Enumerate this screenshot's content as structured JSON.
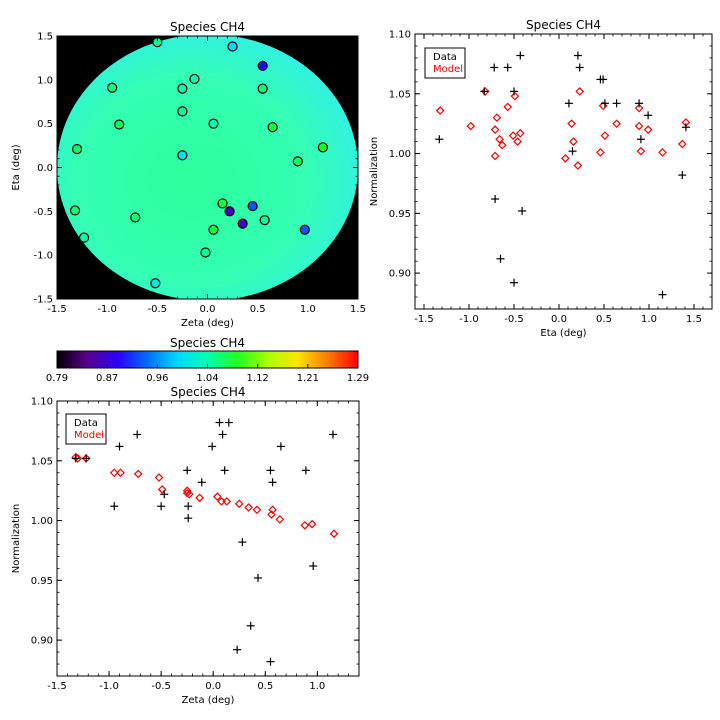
{
  "chart_data": [
    {
      "type": "scatter",
      "title": "Species CH4",
      "xlabel": "Zeta (deg)",
      "ylabel": "Eta (deg)",
      "xlim": [
        -1.5,
        1.5
      ],
      "ylim": [
        -1.5,
        1.5
      ],
      "xticks": [
        "-1.5",
        "-1.0",
        "-0.5",
        "0.0",
        "0.5",
        "1.0",
        "1.5"
      ],
      "yticks": [
        "-1.5",
        "-1.0",
        "-0.5",
        "0.0",
        "0.5",
        "1.0",
        "1.5"
      ],
      "background": "#000000",
      "field_color": "#33ffaa",
      "points": [
        {
          "x": -0.5,
          "y": 1.43,
          "v": 1.05
        },
        {
          "x": 0.25,
          "y": 1.38,
          "v": 0.99
        },
        {
          "x": 0.55,
          "y": 1.16,
          "v": 0.89
        },
        {
          "x": -0.95,
          "y": 0.91,
          "v": 1.06
        },
        {
          "x": -0.13,
          "y": 1.01,
          "v": 1.04
        },
        {
          "x": -0.25,
          "y": 0.9,
          "v": 1.04
        },
        {
          "x": 0.55,
          "y": 0.9,
          "v": 1.06
        },
        {
          "x": -0.88,
          "y": 0.49,
          "v": 1.07
        },
        {
          "x": -0.25,
          "y": 0.64,
          "v": 1.05
        },
        {
          "x": 0.06,
          "y": 0.5,
          "v": 1.04
        },
        {
          "x": 0.65,
          "y": 0.46,
          "v": 1.08
        },
        {
          "x": 1.15,
          "y": 0.23,
          "v": 1.09
        },
        {
          "x": -1.3,
          "y": 0.21,
          "v": 1.07
        },
        {
          "x": -0.25,
          "y": 0.14,
          "v": 1.0
        },
        {
          "x": 0.9,
          "y": 0.07,
          "v": 1.07
        },
        {
          "x": -1.32,
          "y": -0.49,
          "v": 1.06
        },
        {
          "x": 0.15,
          "y": -0.41,
          "v": 1.08
        },
        {
          "x": 0.45,
          "y": -0.44,
          "v": 0.93
        },
        {
          "x": 0.22,
          "y": -0.5,
          "v": 0.86
        },
        {
          "x": -0.72,
          "y": -0.57,
          "v": 1.06
        },
        {
          "x": 0.35,
          "y": -0.64,
          "v": 0.86
        },
        {
          "x": 0.57,
          "y": -0.6,
          "v": 1.05
        },
        {
          "x": 0.97,
          "y": -0.71,
          "v": 0.93
        },
        {
          "x": 0.06,
          "y": -0.71,
          "v": 1.08
        },
        {
          "x": -1.23,
          "y": -0.8,
          "v": 1.04
        },
        {
          "x": -0.02,
          "y": -0.97,
          "v": 1.05
        },
        {
          "x": -0.52,
          "y": -1.32,
          "v": 1.01
        }
      ]
    },
    {
      "type": "colorbar",
      "title": "Species CH4",
      "range": [
        0.79,
        1.29
      ],
      "ticks": [
        "0.79",
        "0.87",
        "0.96",
        "1.04",
        "1.12",
        "1.21",
        "1.29"
      ]
    },
    {
      "type": "scatter",
      "title": "Species CH4",
      "xlabel": "Eta (deg)",
      "ylabel": "Normalization",
      "xlim": [
        -1.6,
        1.7
      ],
      "ylim": [
        0.87,
        1.1
      ],
      "xticks": [
        "-1.5",
        "-1.0",
        "-0.5",
        "0.0",
        "0.5",
        "1.0",
        "1.5"
      ],
      "yticks": [
        "0.90",
        "0.95",
        "1.00",
        "1.05",
        "1.10"
      ],
      "legend": [
        "Data",
        "Model"
      ],
      "legend_position": "top-left",
      "series": [
        {
          "name": "Data",
          "color": "#000000",
          "marker": "plus",
          "points": [
            [
              -1.33,
              1.012
            ],
            [
              -0.83,
              1.052
            ],
            [
              -0.72,
              1.072
            ],
            [
              -0.57,
              1.072
            ],
            [
              -0.5,
              1.052
            ],
            [
              -0.43,
              1.082
            ],
            [
              -0.71,
              0.962
            ],
            [
              -0.65,
              0.912
            ],
            [
              -0.5,
              0.892
            ],
            [
              -0.41,
              0.952
            ],
            [
              0.11,
              1.042
            ],
            [
              0.15,
              1.002
            ],
            [
              0.21,
              1.082
            ],
            [
              0.23,
              1.072
            ],
            [
              0.46,
              1.062
            ],
            [
              0.49,
              1.062
            ],
            [
              0.51,
              1.042
            ],
            [
              0.64,
              1.042
            ],
            [
              0.89,
              1.042
            ],
            [
              0.91,
              1.012
            ],
            [
              0.99,
              1.032
            ],
            [
              1.15,
              0.882
            ],
            [
              1.37,
              0.982
            ],
            [
              1.41,
              1.022
            ]
          ]
        },
        {
          "name": "Model",
          "color": "#ff0000",
          "marker": "diamond",
          "points": [
            [
              -1.32,
              1.036
            ],
            [
              -0.98,
              1.023
            ],
            [
              -0.82,
              1.052
            ],
            [
              -0.71,
              1.02
            ],
            [
              -0.71,
              0.998
            ],
            [
              -0.69,
              1.03
            ],
            [
              -0.66,
              1.012
            ],
            [
              -0.63,
              1.007
            ],
            [
              -0.57,
              1.039
            ],
            [
              -0.51,
              1.015
            ],
            [
              -0.49,
              1.048
            ],
            [
              -0.46,
              1.01
            ],
            [
              -0.43,
              1.017
            ],
            [
              0.07,
              0.996
            ],
            [
              0.14,
              1.025
            ],
            [
              0.16,
              1.01
            ],
            [
              0.21,
              0.99
            ],
            [
              0.23,
              1.052
            ],
            [
              0.46,
              1.001
            ],
            [
              0.49,
              1.04
            ],
            [
              0.51,
              1.015
            ],
            [
              0.64,
              1.025
            ],
            [
              0.89,
              1.038
            ],
            [
              0.89,
              1.023
            ],
            [
              0.91,
              1.002
            ],
            [
              0.99,
              1.02
            ],
            [
              1.15,
              1.001
            ],
            [
              1.37,
              1.008
            ],
            [
              1.41,
              1.026
            ]
          ]
        }
      ]
    },
    {
      "type": "scatter",
      "title": "Species CH4",
      "xlabel": "Zeta (deg)",
      "ylabel": "Normalization",
      "xlim": [
        -1.5,
        1.4
      ],
      "ylim": [
        0.87,
        1.1
      ],
      "xticks": [
        "-1.5",
        "-1.0",
        "-0.5",
        "0.0",
        "0.5",
        "1.0"
      ],
      "yticks": [
        "0.90",
        "0.95",
        "1.00",
        "1.05",
        "1.10"
      ],
      "legend": [
        "Data",
        "Model"
      ],
      "legend_position": "top-left",
      "series": [
        {
          "name": "Data",
          "color": "#000000",
          "marker": "plus",
          "points": [
            [
              -1.32,
              1.052
            ],
            [
              -1.22,
              1.052
            ],
            [
              -0.95,
              1.012
            ],
            [
              -0.9,
              1.062
            ],
            [
              -0.73,
              1.072
            ],
            [
              -0.5,
              1.012
            ],
            [
              -0.47,
              1.022
            ],
            [
              -0.25,
              1.042
            ],
            [
              -0.24,
              1.002
            ],
            [
              -0.24,
              1.012
            ],
            [
              -0.11,
              1.032
            ],
            [
              -0.01,
              1.062
            ],
            [
              0.06,
              1.082
            ],
            [
              0.09,
              1.072
            ],
            [
              0.11,
              1.042
            ],
            [
              0.15,
              1.082
            ],
            [
              0.28,
              0.982
            ],
            [
              0.23,
              0.892
            ],
            [
              0.36,
              0.912
            ],
            [
              0.43,
              0.952
            ],
            [
              0.55,
              1.042
            ],
            [
              0.57,
              1.032
            ],
            [
              0.55,
              0.882
            ],
            [
              0.65,
              1.062
            ],
            [
              0.89,
              1.042
            ],
            [
              0.96,
              0.962
            ],
            [
              1.15,
              1.072
            ]
          ]
        },
        {
          "name": "Model",
          "color": "#ff0000",
          "marker": "diamond",
          "points": [
            [
              -1.32,
              1.053
            ],
            [
              -1.3,
              1.052
            ],
            [
              -1.22,
              1.052
            ],
            [
              -0.95,
              1.04
            ],
            [
              -0.89,
              1.04
            ],
            [
              -0.72,
              1.039
            ],
            [
              -0.52,
              1.036
            ],
            [
              -0.49,
              1.026
            ],
            [
              -0.25,
              1.025
            ],
            [
              -0.25,
              1.023
            ],
            [
              -0.23,
              1.022
            ],
            [
              -0.13,
              1.019
            ],
            [
              0.04,
              1.02
            ],
            [
              0.08,
              1.016
            ],
            [
              0.13,
              1.016
            ],
            [
              0.25,
              1.014
            ],
            [
              0.34,
              1.011
            ],
            [
              0.42,
              1.009
            ],
            [
              0.57,
              1.009
            ],
            [
              0.56,
              1.005
            ],
            [
              0.64,
              1.001
            ],
            [
              0.88,
              0.996
            ],
            [
              0.95,
              0.997
            ],
            [
              1.16,
              0.989
            ]
          ]
        }
      ]
    }
  ]
}
